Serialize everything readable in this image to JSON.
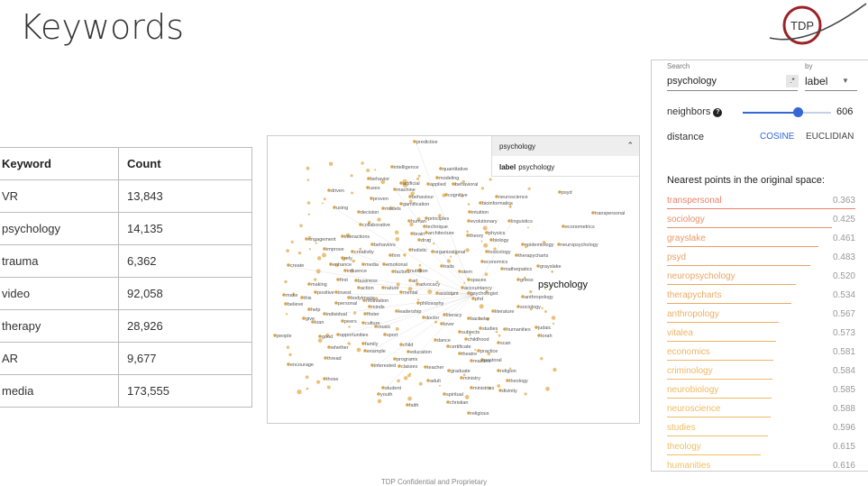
{
  "slide": {
    "title": "Keywords",
    "logo_text": "TDP",
    "footer": "TDP Confidential and Proprietary"
  },
  "table": {
    "headers": [
      "Keyword",
      "Count"
    ],
    "rows": [
      [
        "VR",
        "13,843"
      ],
      [
        "psychology",
        "14,135"
      ],
      [
        "trauma",
        "6,362"
      ],
      [
        "video",
        "92,058"
      ],
      [
        "therapy",
        "28,926"
      ],
      [
        "AR",
        "9,677"
      ],
      [
        "media",
        "173,555"
      ]
    ]
  },
  "projector": {
    "tooltip": {
      "title": "psychology",
      "label_key": "label",
      "label_value": "psychology"
    },
    "selected_label": "psychology",
    "words": [
      [
        "predictive",
        165,
        8
      ],
      [
        "intelligence",
        140,
        36
      ],
      [
        "quantitative",
        194,
        38
      ],
      [
        "behavior",
        114,
        49
      ],
      [
        "modeling",
        190,
        48
      ],
      [
        "artificial",
        150,
        54
      ],
      [
        "applied",
        180,
        55
      ],
      [
        "behavioral",
        208,
        55
      ],
      [
        "uses",
        113,
        59
      ],
      [
        "machine",
        143,
        61
      ],
      [
        "driven",
        70,
        62
      ],
      [
        "behaviour",
        160,
        69
      ],
      [
        "cognitive",
        200,
        67
      ],
      [
        "neuroscience",
        256,
        69
      ],
      [
        "psyd",
        326,
        64
      ],
      [
        "proven",
        117,
        71
      ],
      [
        "bioinformatics",
        238,
        76
      ],
      [
        "gamification",
        150,
        77
      ],
      [
        "using",
        76,
        81
      ],
      [
        "decision",
        103,
        86
      ],
      [
        "models",
        130,
        82
      ],
      [
        "intuition",
        226,
        86
      ],
      [
        "transpersonal",
        363,
        87
      ],
      [
        "collaborative",
        105,
        100
      ],
      [
        "human",
        159,
        96
      ],
      [
        "principles",
        178,
        93
      ],
      [
        "evolutionary",
        225,
        96
      ],
      [
        "linguistics",
        270,
        96
      ],
      [
        "econometrics",
        330,
        102
      ],
      [
        "technique",
        176,
        102
      ],
      [
        "physics",
        245,
        109
      ],
      [
        "architecture",
        178,
        109
      ],
      [
        "brain",
        162,
        110
      ],
      [
        "theory",
        224,
        112
      ],
      [
        "interactions",
        85,
        113
      ],
      [
        "engagement",
        45,
        116
      ],
      [
        "drug",
        170,
        117
      ],
      [
        "biology",
        250,
        117
      ],
      [
        "epidemiology",
        285,
        122
      ],
      [
        "neuropsychology",
        325,
        122
      ],
      [
        "behaviors",
        118,
        122
      ],
      [
        "holistic",
        160,
        128
      ],
      [
        "organizational",
        185,
        130
      ],
      [
        "toxicology",
        245,
        130
      ],
      [
        "improve",
        65,
        127
      ],
      [
        "creativity",
        96,
        130
      ],
      [
        "firm",
        138,
        134
      ],
      [
        "therapycharts",
        278,
        134
      ],
      [
        "rely",
        85,
        137
      ],
      [
        "economics",
        240,
        141
      ],
      [
        "enhance",
        72,
        144
      ],
      [
        "media",
        108,
        144
      ],
      [
        "emotional",
        131,
        144
      ],
      [
        "traits",
        195,
        146
      ],
      [
        "create",
        25,
        145
      ],
      [
        "grayslake",
        302,
        146
      ],
      [
        "mathematics",
        262,
        149
      ],
      [
        "influence",
        88,
        151
      ],
      [
        "factors",
        141,
        152
      ],
      [
        "nutrition",
        158,
        151
      ],
      [
        "stem",
        215,
        152
      ],
      [
        "spaces",
        225,
        161
      ],
      [
        "first",
        80,
        161
      ],
      [
        "business",
        100,
        162
      ],
      [
        "art",
        160,
        162
      ],
      [
        "griess",
        280,
        161
      ],
      [
        "making",
        48,
        166
      ],
      [
        "advocacy",
        168,
        166
      ],
      [
        "action",
        103,
        170
      ],
      [
        "nature",
        130,
        170
      ],
      [
        "accountancy",
        218,
        170
      ],
      [
        "positive",
        55,
        175
      ],
      [
        "invest",
        78,
        175
      ],
      [
        "mental",
        150,
        175
      ],
      [
        "psychologist",
        225,
        176
      ],
      [
        "make",
        20,
        178
      ],
      [
        "this",
        40,
        181
      ],
      [
        "bodyimage",
        92,
        181
      ],
      [
        "motivation",
        109,
        184
      ],
      [
        "assistant",
        190,
        176
      ],
      [
        "anthropology",
        285,
        180
      ],
      [
        "phd",
        230,
        182
      ],
      [
        "believe",
        22,
        188
      ],
      [
        "personal",
        78,
        187
      ],
      [
        "minds",
        115,
        191
      ],
      [
        "philosophy",
        169,
        187
      ],
      [
        "sociology",
        280,
        191
      ],
      [
        "help",
        48,
        194
      ],
      [
        "leadership",
        145,
        196
      ],
      [
        "literature",
        252,
        196
      ],
      [
        "individual",
        65,
        199
      ],
      [
        "foster",
        110,
        199
      ],
      [
        "literacy",
        198,
        200
      ],
      [
        "doctor",
        175,
        203
      ],
      [
        "bachelor",
        225,
        204
      ],
      [
        "give",
        42,
        204
      ],
      [
        "loan",
        52,
        208
      ],
      [
        "peers",
        85,
        207
      ],
      [
        "culture",
        108,
        209
      ],
      [
        "music",
        122,
        213
      ],
      [
        "lover",
        195,
        210
      ],
      [
        "studies",
        238,
        215
      ],
      [
        "humanities",
        265,
        216
      ],
      [
        "judaic",
        300,
        214
      ],
      [
        "torah",
        303,
        223
      ],
      [
        "subjects",
        215,
        219
      ],
      [
        "people",
        10,
        223
      ],
      [
        "good",
        60,
        224
      ],
      [
        "opportunities",
        80,
        222
      ],
      [
        "sport",
        132,
        222
      ],
      [
        "childhood",
        222,
        227
      ],
      [
        "dance",
        188,
        228
      ],
      [
        "scan",
        258,
        231
      ],
      [
        "family",
        108,
        232
      ],
      [
        "child",
        150,
        233
      ],
      [
        "certificate",
        202,
        235
      ],
      [
        "whether",
        70,
        236
      ],
      [
        "example",
        110,
        240
      ],
      [
        "education",
        158,
        241
      ],
      [
        "theatre",
        215,
        243
      ],
      [
        "practice",
        236,
        240
      ],
      [
        "pastoral",
        240,
        250
      ],
      [
        "thread",
        66,
        248
      ],
      [
        "programs",
        143,
        249
      ],
      [
        "masters",
        228,
        251
      ],
      [
        "encourage",
        25,
        255
      ],
      [
        "interested",
        118,
        256
      ],
      [
        "classes",
        148,
        257
      ],
      [
        "teacher",
        177,
        258
      ],
      [
        "graduate",
        203,
        262
      ],
      [
        "religion",
        258,
        262
      ],
      [
        "those",
        65,
        271
      ],
      [
        "adult",
        180,
        273
      ],
      [
        "ministry",
        217,
        270
      ],
      [
        "theology",
        268,
        273
      ],
      [
        "student",
        130,
        281
      ],
      [
        "ministries",
        228,
        281
      ],
      [
        "divinity",
        260,
        284
      ],
      [
        "youth",
        125,
        288
      ],
      [
        "spiritual",
        198,
        288
      ],
      [
        "christian",
        202,
        297
      ],
      [
        "faith",
        157,
        300
      ],
      [
        "religious",
        225,
        309
      ]
    ]
  },
  "panel": {
    "search_label": "Search",
    "search_value": "psychology",
    "regex_label": ".*",
    "by_label": "by",
    "by_value": "label",
    "neighbors_label": "neighbors",
    "neighbors_value": "606",
    "neighbors_fraction": 0.62,
    "distance_label": "distance",
    "cosine": "COSINE",
    "euclidian": "EUCLIDIAN",
    "nearest_header": "Nearest points in the original space:",
    "nearest": [
      {
        "name": "transpersonal",
        "value": "0.363",
        "color": "#e8826a"
      },
      {
        "name": "sociology",
        "value": "0.425",
        "color": "#e99068"
      },
      {
        "name": "grayslake",
        "value": "0.461",
        "color": "#ea9a66"
      },
      {
        "name": "psyd",
        "value": "0.483",
        "color": "#eba165"
      },
      {
        "name": "neuropsychology",
        "value": "0.520",
        "color": "#eca664"
      },
      {
        "name": "therapycharts",
        "value": "0.534",
        "color": "#edab63"
      },
      {
        "name": "anthropology",
        "value": "0.567",
        "color": "#edb062"
      },
      {
        "name": "vitalea",
        "value": "0.573",
        "color": "#eeb462"
      },
      {
        "name": "economics",
        "value": "0.581",
        "color": "#eeb662"
      },
      {
        "name": "criminology",
        "value": "0.584",
        "color": "#eeb862"
      },
      {
        "name": "neurobiology",
        "value": "0.585",
        "color": "#efb962"
      },
      {
        "name": "neuroscience",
        "value": "0.588",
        "color": "#efbb62"
      },
      {
        "name": "studies",
        "value": "0.596",
        "color": "#efbd62"
      },
      {
        "name": "theology",
        "value": "0.615",
        "color": "#f0c062"
      },
      {
        "name": "humanities",
        "value": "0.616",
        "color": "#f0c262"
      }
    ]
  }
}
